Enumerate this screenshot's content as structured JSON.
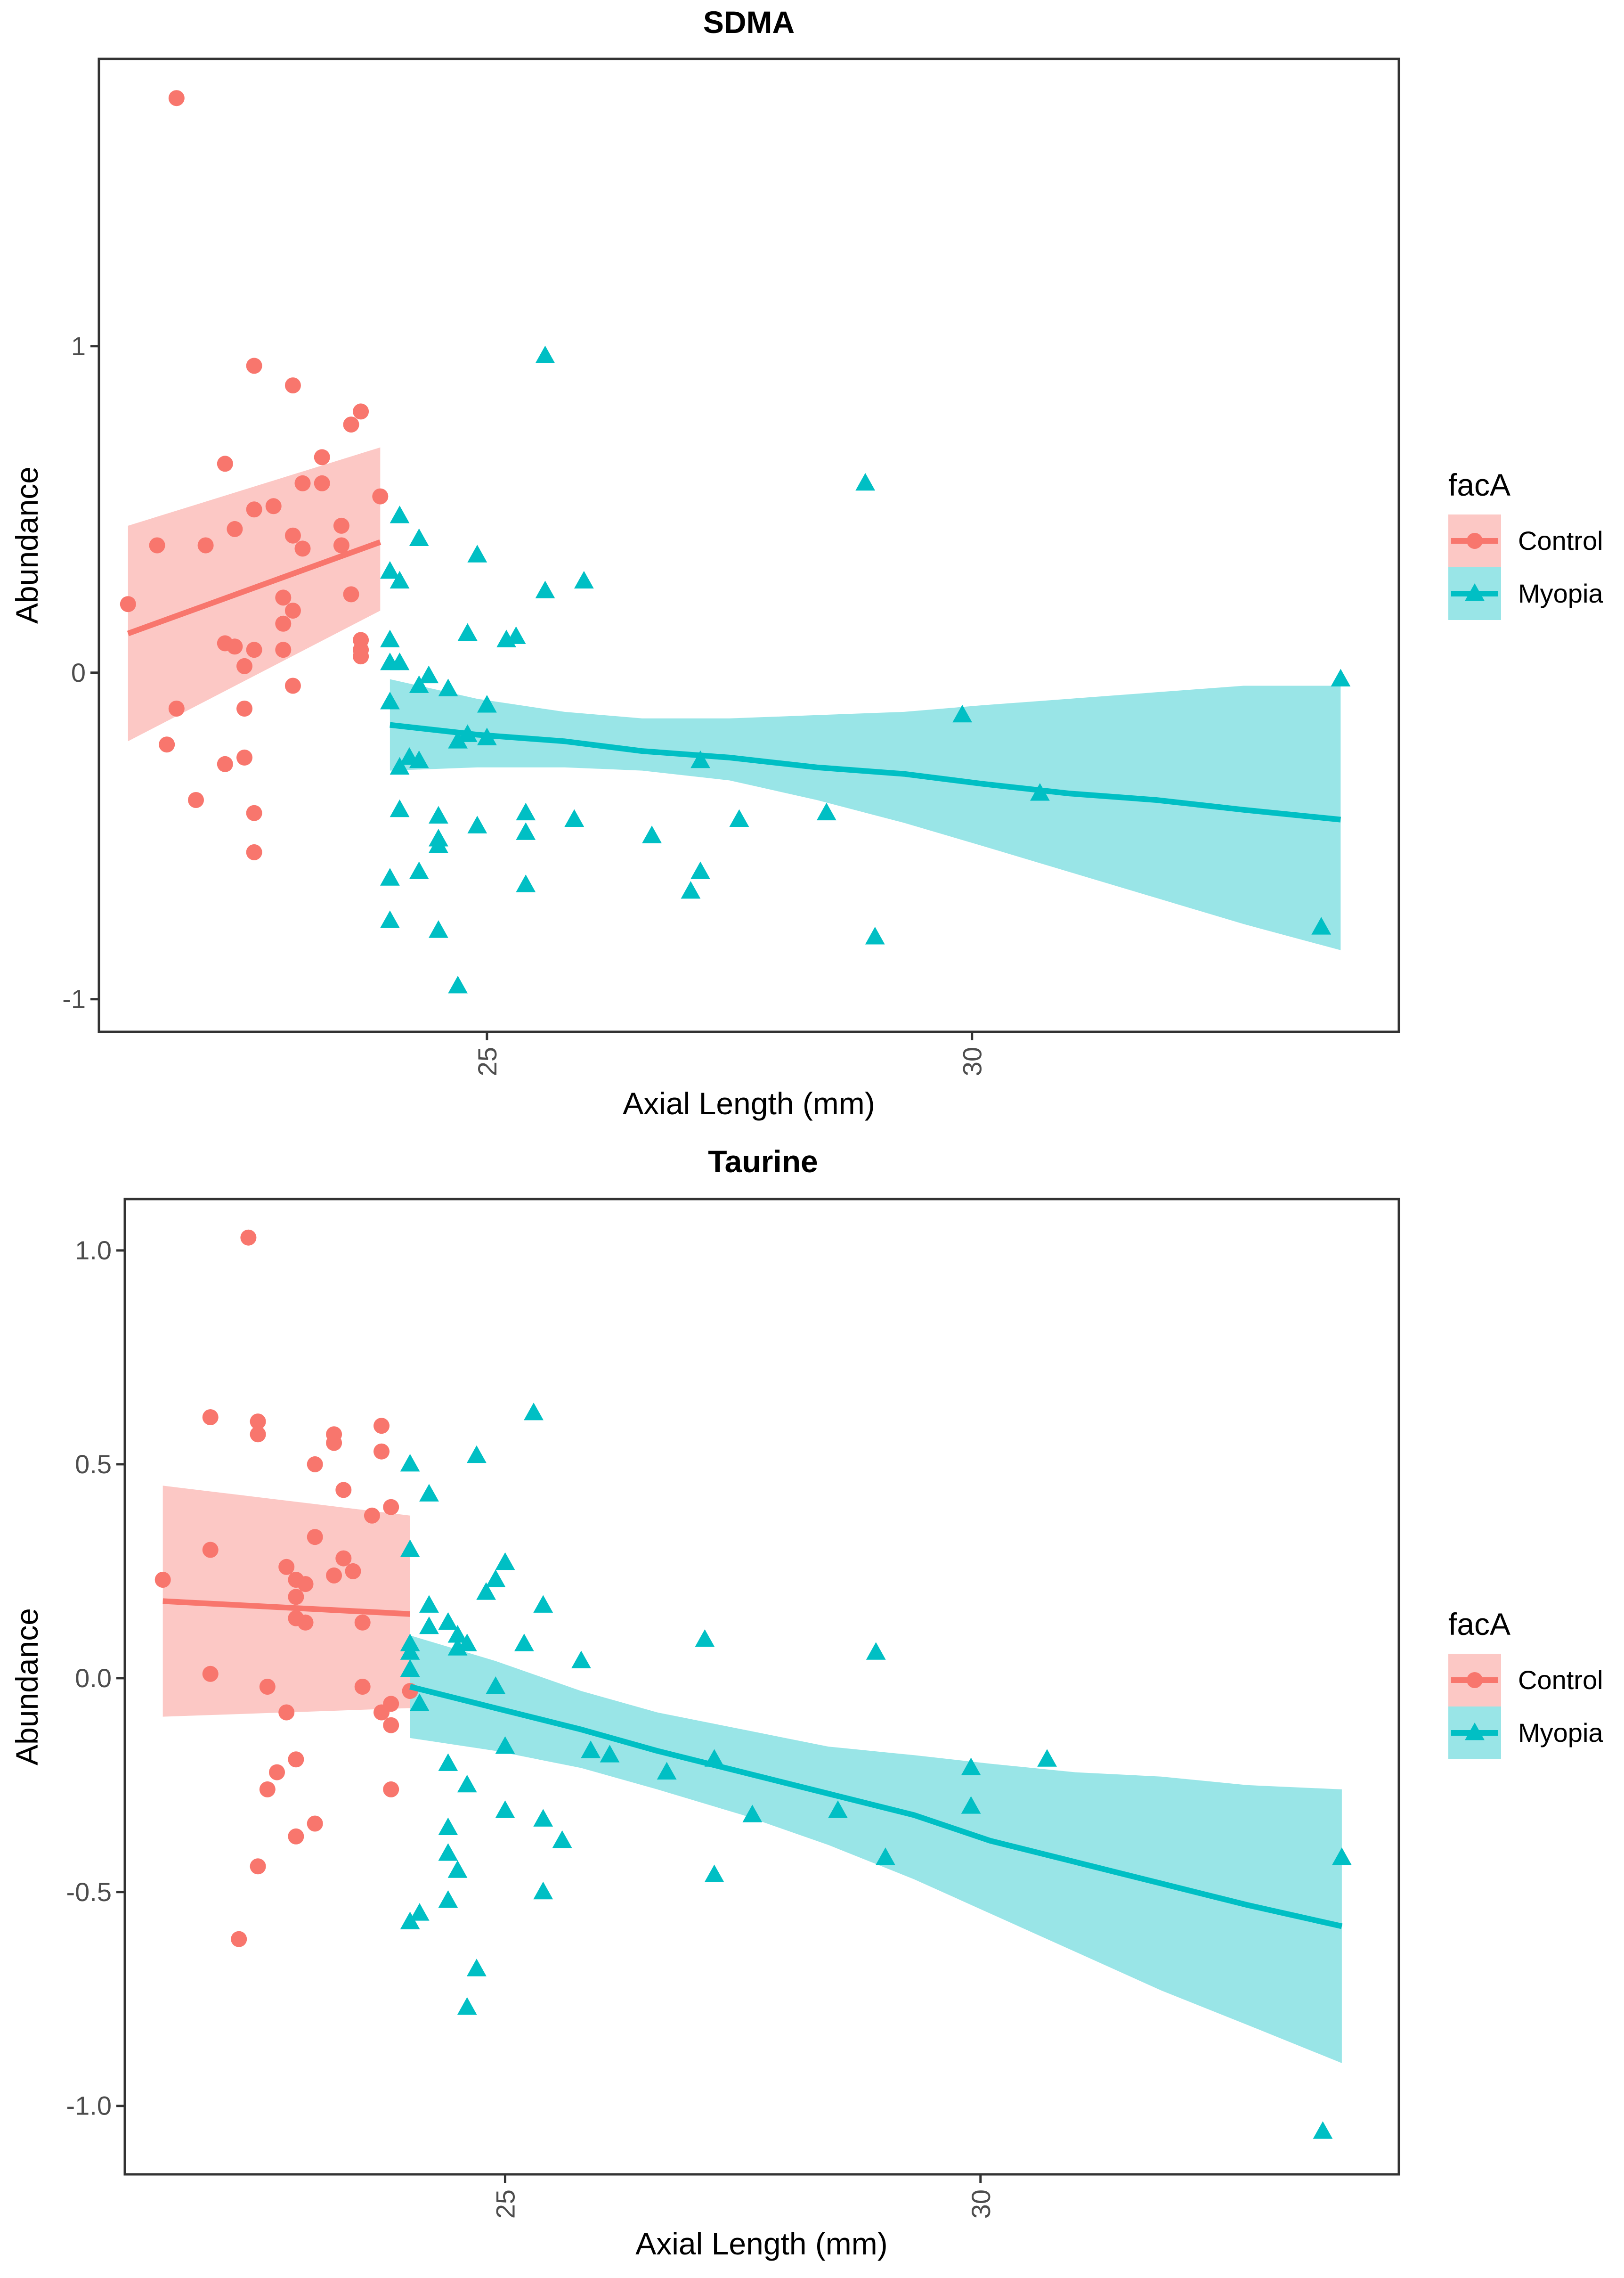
{
  "chart_data": [
    {
      "type": "scatter",
      "title": "SDMA",
      "xlabel": "Axial Length (mm)",
      "ylabel": "Abundance",
      "xlim": [
        21.0,
        34.4
      ],
      "ylim": [
        -1.1,
        1.88
      ],
      "x_ticks": [
        25,
        30
      ],
      "x_tick_labels": [
        "25",
        "30"
      ],
      "y_ticks": [
        -1,
        0,
        1
      ],
      "y_tick_labels": [
        "-1",
        "0",
        "1"
      ],
      "grid": false,
      "legend": {
        "title": "facA",
        "position": "right"
      },
      "series": [
        {
          "name": "Control",
          "marker": "circle",
          "color": "#F8766D",
          "ribbon_color": "#F8766D",
          "points": [
            [
              21.8,
              1.76
            ],
            [
              22.6,
              0.94
            ],
            [
              23.0,
              0.88
            ],
            [
              23.7,
              0.8
            ],
            [
              23.6,
              0.76
            ],
            [
              22.3,
              0.64
            ],
            [
              23.3,
              0.66
            ],
            [
              23.1,
              0.58
            ],
            [
              23.3,
              0.58
            ],
            [
              23.9,
              0.54
            ],
            [
              22.8,
              0.51
            ],
            [
              22.6,
              0.5
            ],
            [
              23.5,
              0.45
            ],
            [
              22.4,
              0.44
            ],
            [
              23.0,
              0.42
            ],
            [
              22.1,
              0.39
            ],
            [
              21.6,
              0.39
            ],
            [
              23.1,
              0.38
            ],
            [
              23.5,
              0.39
            ],
            [
              21.3,
              0.21
            ],
            [
              23.6,
              0.24
            ],
            [
              22.9,
              0.23
            ],
            [
              23.0,
              0.19
            ],
            [
              22.9,
              0.15
            ],
            [
              23.7,
              0.1
            ],
            [
              22.3,
              0.09
            ],
            [
              22.6,
              0.07
            ],
            [
              22.4,
              0.08
            ],
            [
              22.9,
              0.07
            ],
            [
              23.7,
              0.07
            ],
            [
              23.7,
              0.05
            ],
            [
              22.5,
              0.02
            ],
            [
              23.0,
              -0.04
            ],
            [
              21.8,
              -0.11
            ],
            [
              22.5,
              -0.11
            ],
            [
              21.7,
              -0.22
            ],
            [
              22.5,
              -0.26
            ],
            [
              22.3,
              -0.28
            ],
            [
              22.0,
              -0.39
            ],
            [
              22.6,
              -0.43
            ],
            [
              22.6,
              -0.55
            ]
          ],
          "fit": {
            "x": [
              21.3,
              23.9
            ],
            "y": [
              0.12,
              0.4
            ],
            "lower": [
              -0.21,
              0.19
            ],
            "upper": [
              0.45,
              0.69
            ]
          }
        },
        {
          "name": "Myopia",
          "marker": "triangle",
          "color": "#00BFC4",
          "ribbon_color": "#00BFC4",
          "points": [
            [
              25.6,
              0.97
            ],
            [
              28.9,
              0.58
            ],
            [
              24.1,
              0.48
            ],
            [
              24.3,
              0.41
            ],
            [
              24.9,
              0.36
            ],
            [
              24.0,
              0.31
            ],
            [
              24.1,
              0.28
            ],
            [
              26.0,
              0.28
            ],
            [
              25.6,
              0.25
            ],
            [
              24.8,
              0.12
            ],
            [
              25.3,
              0.11
            ],
            [
              25.2,
              0.1
            ],
            [
              24.0,
              0.1
            ],
            [
              24.0,
              0.03
            ],
            [
              24.1,
              0.03
            ],
            [
              24.4,
              -0.01
            ],
            [
              24.3,
              -0.04
            ],
            [
              24.6,
              -0.05
            ],
            [
              33.8,
              -0.02
            ],
            [
              24.0,
              -0.09
            ],
            [
              25.0,
              -0.1
            ],
            [
              29.9,
              -0.13
            ],
            [
              24.8,
              -0.19
            ],
            [
              25.0,
              -0.2
            ],
            [
              24.7,
              -0.21
            ],
            [
              24.2,
              -0.26
            ],
            [
              24.3,
              -0.27
            ],
            [
              24.1,
              -0.29
            ],
            [
              27.2,
              -0.27
            ],
            [
              30.7,
              -0.37
            ],
            [
              24.1,
              -0.42
            ],
            [
              25.4,
              -0.43
            ],
            [
              24.5,
              -0.44
            ],
            [
              28.5,
              -0.43
            ],
            [
              25.9,
              -0.45
            ],
            [
              27.6,
              -0.45
            ],
            [
              24.9,
              -0.47
            ],
            [
              25.4,
              -0.49
            ],
            [
              26.7,
              -0.5
            ],
            [
              24.5,
              -0.51
            ],
            [
              24.5,
              -0.53
            ],
            [
              24.3,
              -0.61
            ],
            [
              27.2,
              -0.61
            ],
            [
              24.0,
              -0.63
            ],
            [
              25.4,
              -0.65
            ],
            [
              27.1,
              -0.67
            ],
            [
              24.0,
              -0.76
            ],
            [
              24.5,
              -0.79
            ],
            [
              33.6,
              -0.78
            ],
            [
              29.0,
              -0.81
            ],
            [
              24.7,
              -0.96
            ]
          ],
          "fit": {
            "x": [
              24.0,
              24.9,
              25.8,
              26.6,
              27.5,
              28.4,
              29.3,
              30.1,
              31.0,
              31.9,
              32.8,
              33.8
            ],
            "y": [
              -0.16,
              -0.19,
              -0.21,
              -0.24,
              -0.26,
              -0.29,
              -0.31,
              -0.34,
              -0.37,
              -0.39,
              -0.42,
              -0.45
            ],
            "lower": [
              -0.3,
              -0.29,
              -0.29,
              -0.3,
              -0.33,
              -0.39,
              -0.46,
              -0.53,
              -0.61,
              -0.69,
              -0.77,
              -0.85
            ],
            "upper": [
              -0.02,
              -0.08,
              -0.12,
              -0.14,
              -0.14,
              -0.13,
              -0.12,
              -0.1,
              -0.08,
              -0.06,
              -0.04,
              -0.04
            ]
          }
        }
      ]
    },
    {
      "type": "scatter",
      "title": "Taurine",
      "xlabel": "Axial Length (mm)",
      "ylabel": "Abundance",
      "xlim": [
        21.0,
        34.4
      ],
      "ylim": [
        -1.16,
        1.12
      ],
      "x_ticks": [
        25,
        30
      ],
      "x_tick_labels": [
        "25",
        "30"
      ],
      "y_ticks": [
        -1.0,
        -0.5,
        0.0,
        0.5,
        1.0
      ],
      "y_tick_labels": [
        "-1.0",
        "-0.5",
        "0.0",
        "0.5",
        "1.0"
      ],
      "grid": false,
      "legend": {
        "title": "facA",
        "position": "right"
      },
      "series": [
        {
          "name": "Control",
          "marker": "circle",
          "color": "#F8766D",
          "ribbon_color": "#F8766D",
          "points": [
            [
              22.3,
              1.03
            ],
            [
              21.9,
              0.61
            ],
            [
              22.4,
              0.6
            ],
            [
              23.2,
              0.57
            ],
            [
              22.4,
              0.57
            ],
            [
              23.7,
              0.59
            ],
            [
              23.2,
              0.55
            ],
            [
              23.7,
              0.53
            ],
            [
              23.0,
              0.5
            ],
            [
              23.3,
              0.44
            ],
            [
              23.8,
              0.4
            ],
            [
              23.6,
              0.38
            ],
            [
              23.0,
              0.33
            ],
            [
              21.9,
              0.3
            ],
            [
              23.3,
              0.28
            ],
            [
              22.7,
              0.26
            ],
            [
              21.4,
              0.23
            ],
            [
              22.8,
              0.23
            ],
            [
              23.2,
              0.24
            ],
            [
              23.4,
              0.25
            ],
            [
              22.9,
              0.22
            ],
            [
              22.8,
              0.19
            ],
            [
              22.8,
              0.14
            ],
            [
              22.9,
              0.13
            ],
            [
              23.5,
              0.13
            ],
            [
              21.9,
              0.01
            ],
            [
              22.5,
              -0.02
            ],
            [
              23.5,
              -0.02
            ],
            [
              24.0,
              -0.03
            ],
            [
              23.8,
              -0.06
            ],
            [
              23.7,
              -0.08
            ],
            [
              22.7,
              -0.08
            ],
            [
              23.8,
              -0.11
            ],
            [
              22.8,
              -0.19
            ],
            [
              22.6,
              -0.22
            ],
            [
              22.5,
              -0.26
            ],
            [
              23.8,
              -0.26
            ],
            [
              23.0,
              -0.34
            ],
            [
              22.8,
              -0.37
            ],
            [
              22.4,
              -0.44
            ],
            [
              22.2,
              -0.61
            ]
          ],
          "fit": {
            "x": [
              21.4,
              24.0
            ],
            "y": [
              0.18,
              0.15
            ],
            "lower": [
              -0.09,
              -0.07
            ],
            "upper": [
              0.45,
              0.38
            ]
          }
        },
        {
          "name": "Myopia",
          "marker": "triangle",
          "color": "#00BFC4",
          "ribbon_color": "#00BFC4",
          "points": [
            [
              25.3,
              0.62
            ],
            [
              24.7,
              0.52
            ],
            [
              24.0,
              0.5
            ],
            [
              24.2,
              0.43
            ],
            [
              24.0,
              0.3
            ],
            [
              25.0,
              0.27
            ],
            [
              24.9,
              0.23
            ],
            [
              24.8,
              0.2
            ],
            [
              25.4,
              0.17
            ],
            [
              24.2,
              0.17
            ],
            [
              24.4,
              0.13
            ],
            [
              24.2,
              0.12
            ],
            [
              24.5,
              0.1
            ],
            [
              25.2,
              0.08
            ],
            [
              24.6,
              0.08
            ],
            [
              24.5,
              0.07
            ],
            [
              27.1,
              0.09
            ],
            [
              24.0,
              0.08
            ],
            [
              24.0,
              0.06
            ],
            [
              28.9,
              0.06
            ],
            [
              25.8,
              0.04
            ],
            [
              24.0,
              0.02
            ],
            [
              24.9,
              -0.02
            ],
            [
              24.1,
              -0.06
            ],
            [
              25.0,
              -0.16
            ],
            [
              25.9,
              -0.17
            ],
            [
              26.1,
              -0.18
            ],
            [
              27.2,
              -0.19
            ],
            [
              29.9,
              -0.21
            ],
            [
              30.7,
              -0.19
            ],
            [
              24.4,
              -0.2
            ],
            [
              26.7,
              -0.22
            ],
            [
              24.6,
              -0.25
            ],
            [
              27.6,
              -0.32
            ],
            [
              28.5,
              -0.31
            ],
            [
              29.9,
              -0.3
            ],
            [
              25.0,
              -0.31
            ],
            [
              25.4,
              -0.33
            ],
            [
              24.4,
              -0.35
            ],
            [
              25.6,
              -0.38
            ],
            [
              24.4,
              -0.41
            ],
            [
              29.0,
              -0.42
            ],
            [
              33.8,
              -0.42
            ],
            [
              24.5,
              -0.45
            ],
            [
              27.2,
              -0.46
            ],
            [
              25.4,
              -0.5
            ],
            [
              24.4,
              -0.52
            ],
            [
              24.1,
              -0.55
            ],
            [
              24.0,
              -0.57
            ],
            [
              24.7,
              -0.68
            ],
            [
              24.6,
              -0.77
            ],
            [
              33.6,
              -1.06
            ]
          ],
          "fit": {
            "x": [
              24.0,
              24.9,
              25.8,
              26.6,
              27.5,
              28.4,
              29.3,
              30.1,
              31.0,
              31.9,
              32.8,
              33.8
            ],
            "y": [
              -0.02,
              -0.07,
              -0.12,
              -0.17,
              -0.22,
              -0.27,
              -0.32,
              -0.38,
              -0.43,
              -0.48,
              -0.53,
              -0.58
            ],
            "lower": [
              -0.14,
              -0.17,
              -0.21,
              -0.26,
              -0.32,
              -0.39,
              -0.47,
              -0.55,
              -0.64,
              -0.73,
              -0.81,
              -0.9
            ],
            "upper": [
              0.1,
              0.04,
              -0.03,
              -0.08,
              -0.12,
              -0.16,
              -0.18,
              -0.2,
              -0.22,
              -0.23,
              -0.25,
              -0.26
            ]
          }
        }
      ]
    }
  ]
}
